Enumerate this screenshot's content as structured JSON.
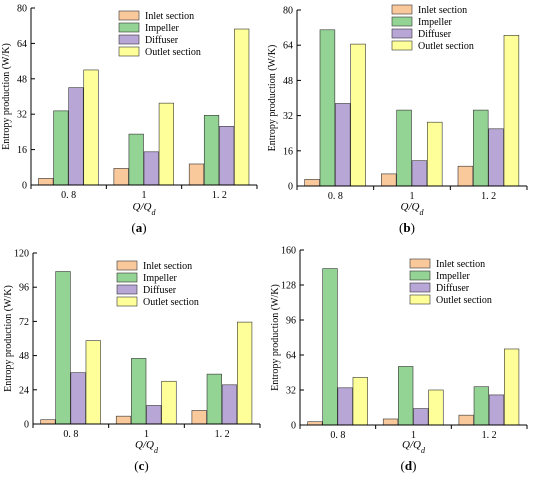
{
  "chart_data": [
    {
      "type": "bar",
      "panel_label": "(a)",
      "panel_letter": "a",
      "categories": [
        "0. 8",
        "1",
        "1. 2"
      ],
      "xlabel": "Q/Q_d",
      "ylabel": "Entropy production (W/K)",
      "ylim": [
        0,
        80
      ],
      "yticks": [
        "0",
        "16",
        "32",
        "48",
        "64",
        "80"
      ],
      "legend_position": "top-right",
      "grid": false,
      "series": [
        {
          "name": "Inlet section",
          "color": "#f9c89b",
          "values": [
            3,
            7.5,
            9.5
          ]
        },
        {
          "name": "Impeller",
          "color": "#93d394",
          "values": [
            33.5,
            23,
            31.5
          ]
        },
        {
          "name": "Diffuser",
          "color": "#b8a6d6",
          "values": [
            44,
            15,
            26.5
          ]
        },
        {
          "name": "Outlet section",
          "color": "#ffff99",
          "values": [
            52,
            37,
            70.5
          ]
        }
      ]
    },
    {
      "type": "bar",
      "panel_label": "(b)",
      "panel_letter": "b",
      "categories": [
        "0. 8",
        "1",
        "1. 2"
      ],
      "xlabel": "Q/Q_d",
      "ylabel": "Entropy production (W/K)",
      "ylim": [
        0,
        80
      ],
      "yticks": [
        "0",
        "16",
        "32",
        "48",
        "64",
        "80"
      ],
      "legend_position": "top-right",
      "grid": false,
      "series": [
        {
          "name": "Inlet section",
          "color": "#f9c89b",
          "values": [
            3,
            5.5,
            9
          ]
        },
        {
          "name": "Impeller",
          "color": "#93d394",
          "values": [
            71,
            34.5,
            34.5
          ]
        },
        {
          "name": "Diffuser",
          "color": "#b8a6d6",
          "values": [
            37.5,
            11.5,
            26
          ]
        },
        {
          "name": "Outlet section",
          "color": "#ffff99",
          "values": [
            64.5,
            29,
            68.5
          ]
        }
      ]
    },
    {
      "type": "bar",
      "panel_label": "(c)",
      "panel_letter": "c",
      "categories": [
        "0. 8",
        "1",
        "1. 2"
      ],
      "xlabel": "Q/Q_d",
      "ylabel": "Entropy production (W/K)",
      "ylim": [
        0,
        120
      ],
      "yticks": [
        "0",
        "24",
        "48",
        "72",
        "96",
        "120"
      ],
      "legend_position": "top-right",
      "grid": false,
      "series": [
        {
          "name": "Inlet section",
          "color": "#f9c89b",
          "values": [
            3,
            5.5,
            9.5
          ]
        },
        {
          "name": "Impeller",
          "color": "#93d394",
          "values": [
            107,
            46,
            35
          ]
        },
        {
          "name": "Diffuser",
          "color": "#b8a6d6",
          "values": [
            36,
            13,
            27.5
          ]
        },
        {
          "name": "Outlet section",
          "color": "#ffff99",
          "values": [
            58.5,
            30,
            71.5
          ]
        }
      ]
    },
    {
      "type": "bar",
      "panel_label": "(d)",
      "panel_letter": "d",
      "categories": [
        "0. 8",
        "1",
        "1. 2"
      ],
      "xlabel": "Q/Q_d",
      "ylabel": "Entropy production (W/K)",
      "ylim": [
        0,
        160
      ],
      "yticks": [
        "0",
        "32",
        "64",
        "96",
        "128",
        "160"
      ],
      "legend_position": "top-right",
      "grid": false,
      "series": [
        {
          "name": "Inlet section",
          "color": "#f9c89b",
          "values": [
            3,
            5.5,
            9
          ]
        },
        {
          "name": "Impeller",
          "color": "#93d394",
          "values": [
            143,
            53.5,
            35
          ]
        },
        {
          "name": "Diffuser",
          "color": "#b8a6d6",
          "values": [
            34,
            15,
            27.5
          ]
        },
        {
          "name": "Outlet section",
          "color": "#ffff99",
          "values": [
            43.5,
            32,
            69.5
          ]
        }
      ]
    }
  ]
}
